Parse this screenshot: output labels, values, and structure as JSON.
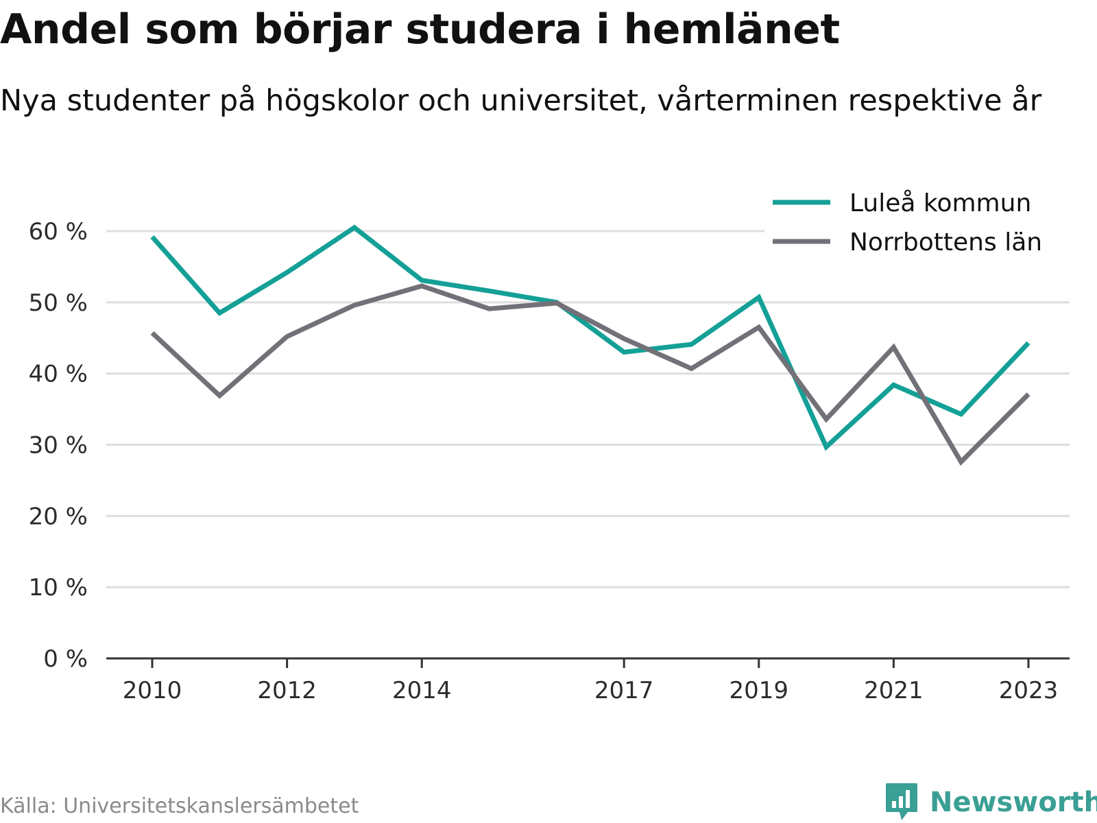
{
  "title": "Andel som börjar studera i hemlänet",
  "subtitle": "Nya studenter på högskolor och universitet, vårterminen respektive år",
  "source": "Källa: Universitetskanslersämbetet",
  "brand": {
    "name": "Newsworthy",
    "icon": "bar-chart-speech-bubble-icon",
    "color": "#3a9f95"
  },
  "chart_data": {
    "type": "line",
    "x": [
      2010,
      2011,
      2012,
      2013,
      2014,
      2015,
      2016,
      2017,
      2018,
      2019,
      2020,
      2021,
      2022,
      2023
    ],
    "x_tick_labels": [
      "2010",
      "2012",
      "2014",
      "2017",
      "2019",
      "2021",
      "2023"
    ],
    "y_tick_labels": [
      "0 %",
      "10 %",
      "20 %",
      "30 %",
      "40 %",
      "50 %",
      "60 %"
    ],
    "ylim": [
      0,
      60
    ],
    "xlim": [
      2010,
      2023
    ],
    "grid": true,
    "legend_position": "top-right",
    "series": [
      {
        "name": "Luleå kommun",
        "color": "#14a097",
        "values": [
          59.2,
          48.5,
          54.2,
          60.5,
          53.1,
          51.6,
          50.0,
          43.0,
          44.1,
          50.7,
          29.7,
          38.4,
          34.3,
          44.3
        ]
      },
      {
        "name": "Norrbottens län",
        "color": "#737078",
        "values": [
          45.7,
          36.9,
          45.2,
          49.6,
          52.3,
          49.1,
          49.9,
          44.9,
          40.7,
          46.5,
          33.6,
          43.7,
          27.6,
          37.1
        ]
      }
    ]
  }
}
